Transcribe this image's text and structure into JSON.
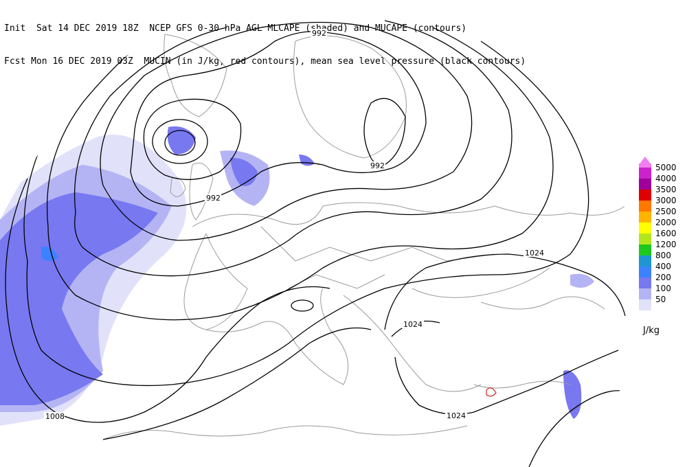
{
  "header": {
    "line1": "Init  Sat 14 DEC 2019 18Z  NCEP GFS 0-30 hPa AGL MLCAPE (shaded) and MUCAPE (contours)",
    "line2": "Fcst Mon 16 DEC 2019 03Z  MUCIN (in J/kg, red contours), mean sea level pressure (black contours)"
  },
  "legend": {
    "unit": "J/kg",
    "items": [
      {
        "label": "5000",
        "color": "#f07ef0"
      },
      {
        "label": "4000",
        "color": "#cc22cc"
      },
      {
        "label": "3500",
        "color": "#a0009a"
      },
      {
        "label": "3000",
        "color": "#e00000"
      },
      {
        "label": "2500",
        "color": "#ff7800"
      },
      {
        "label": "2000",
        "color": "#ffb400"
      },
      {
        "label": "1600",
        "color": "#ffff00"
      },
      {
        "label": "1200",
        "color": "#b4e61e"
      },
      {
        "label": "800",
        "color": "#1ec81e"
      },
      {
        "label": "400",
        "color": "#1e96d2"
      },
      {
        "label": "200",
        "color": "#3c82ff"
      },
      {
        "label": "100",
        "color": "#7878f0"
      },
      {
        "label": "50",
        "color": "#b4b4f5"
      },
      {
        "label": "",
        "color": "#e1e1fa"
      }
    ]
  },
  "isobar_labels": {
    "north_992": "992",
    "scand_992": "992",
    "uk_992": "992",
    "sw_1008": "1008",
    "east_1024": "1024",
    "balkan_1024": "1024",
    "med_1024": "1024"
  }
}
